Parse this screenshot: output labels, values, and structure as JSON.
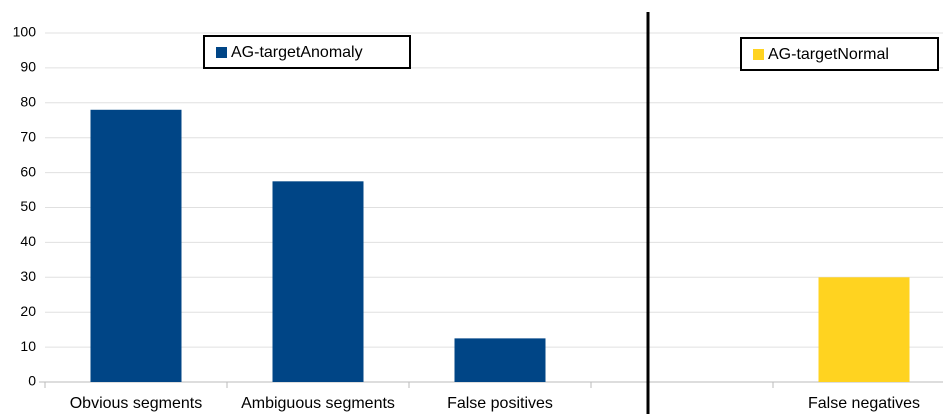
{
  "chart_data": {
    "type": "bar",
    "categories": [
      "Obvious segments",
      "Ambiguous segments",
      "False positives",
      null,
      "False negatives"
    ],
    "series": [
      {
        "name": "AG-targetAnomaly",
        "color": "#004586",
        "values": [
          78,
          57.5,
          12.5,
          null,
          null
        ]
      },
      {
        "name": "AG-targetNormal",
        "color": "#ffd320",
        "values": [
          null,
          null,
          null,
          null,
          30
        ]
      }
    ],
    "ylim": [
      0,
      100
    ],
    "yticks": [
      0,
      10,
      20,
      30,
      40,
      50,
      60,
      70,
      80,
      90,
      100
    ],
    "grid": true
  }
}
